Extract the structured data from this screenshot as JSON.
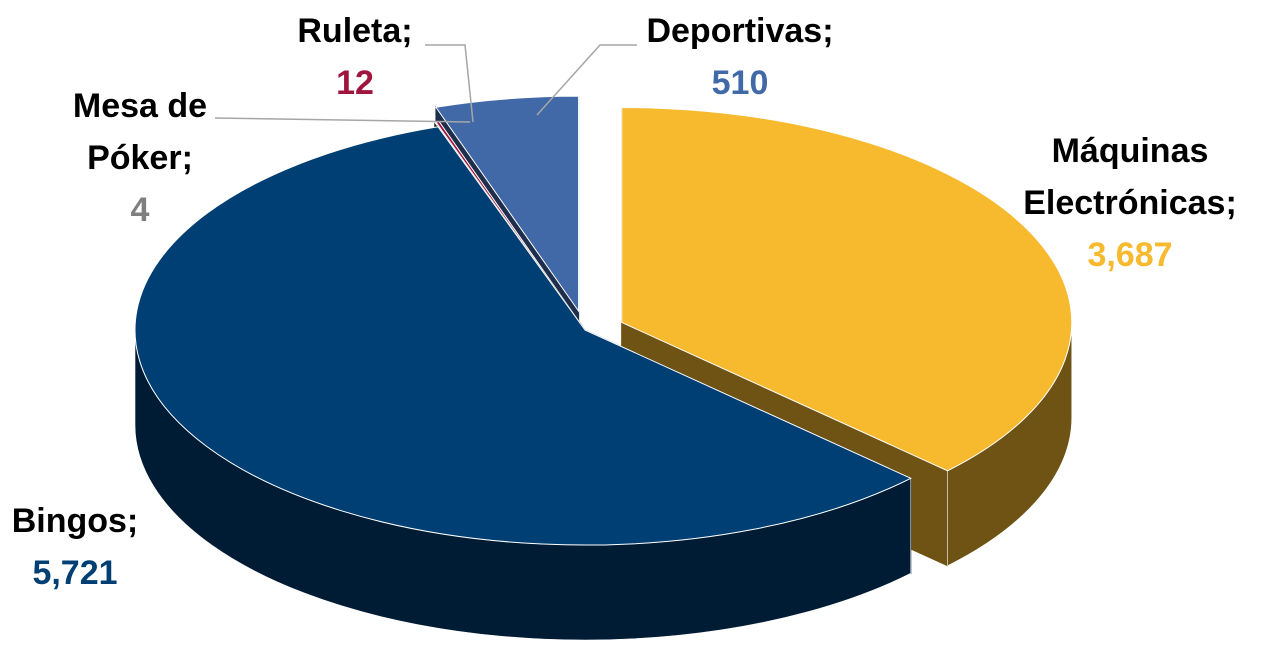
{
  "chart_data": {
    "type": "pie",
    "categories": [
      "Máquinas Electrónicas;",
      "Bingos;",
      "Mesa de Póker;",
      "Ruleta;",
      "Deportivas;"
    ],
    "values": [
      3687,
      5721,
      4,
      12,
      510
    ],
    "value_labels": [
      "3,687",
      "5,721",
      "4",
      "12",
      "510"
    ],
    "colors": [
      "#f7b92e",
      "#003f73",
      "#3a3a3a",
      "#a0153e",
      "#4169a8"
    ],
    "label_colors": [
      "#f7b92e",
      "#003f73",
      "#7f7f7f",
      "#a0153e",
      "#4169a8"
    ]
  }
}
